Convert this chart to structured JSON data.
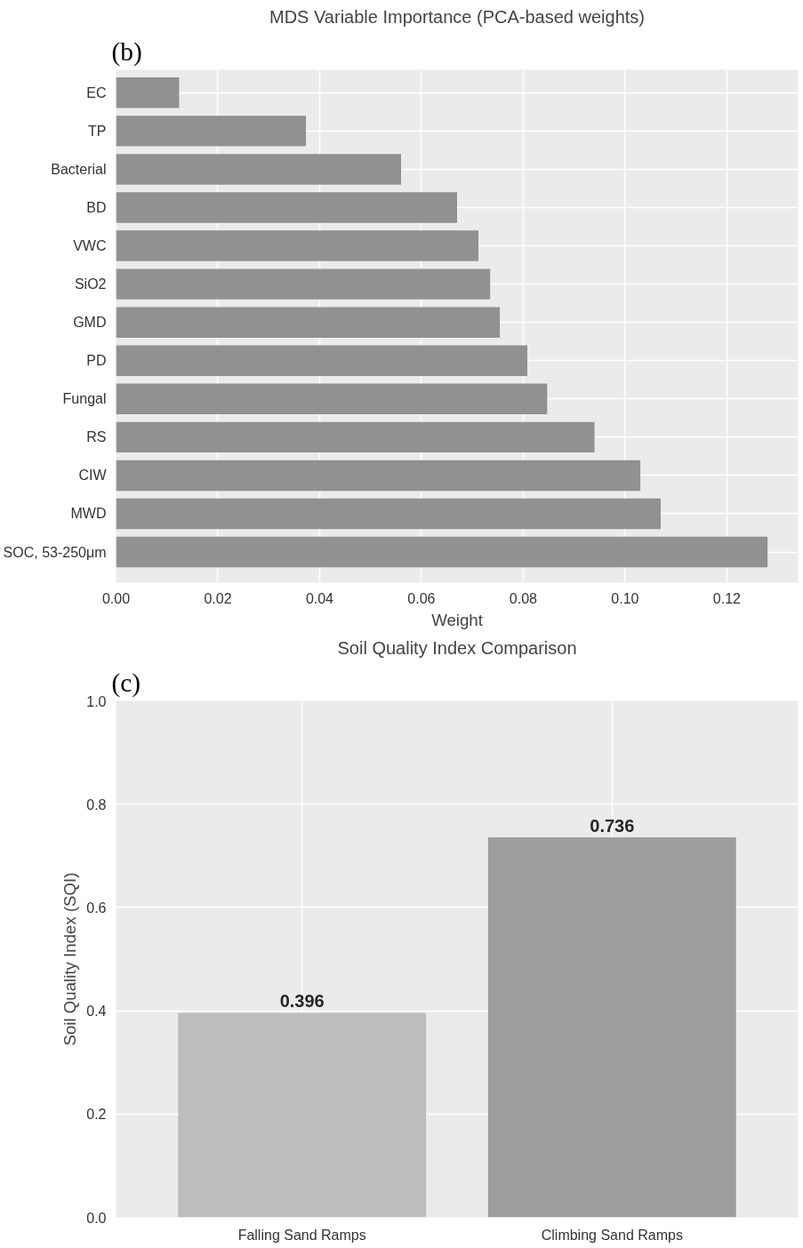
{
  "chart_data": [
    {
      "type": "bar",
      "orientation": "horizontal",
      "title": "MDS Variable Importance (PCA-based weights)",
      "xlabel": "Weight",
      "annotations": [
        "(b)"
      ],
      "categories": [
        "EC",
        "TP",
        "Bacterial",
        "BD",
        "VWC",
        "SiO2",
        "GMD",
        "PD",
        "Fungal",
        "RS",
        "CIW",
        "MWD",
        "SOC, 53-250μm"
      ],
      "values": [
        0.0124,
        0.0373,
        0.056,
        0.067,
        0.0712,
        0.0735,
        0.0754,
        0.0808,
        0.0847,
        0.094,
        0.103,
        0.107,
        0.128
      ],
      "color": "#919191",
      "xlim": [
        0,
        0.134
      ],
      "xticks": [
        {
          "value": 0,
          "label": "0.00"
        },
        {
          "value": 0.02,
          "label": "0.02"
        },
        {
          "value": 0.04,
          "label": "0.04"
        },
        {
          "value": 0.06,
          "label": "0.06"
        },
        {
          "value": 0.08,
          "label": "0.08"
        },
        {
          "value": 0.1,
          "label": "0.10"
        },
        {
          "value": 0.12,
          "label": "0.12"
        }
      ],
      "grid": true
    },
    {
      "type": "bar",
      "title": "Soil Quality Index Comparison",
      "ylabel": "Soil Quality Index (SQI)",
      "annotations": [
        "(c)"
      ],
      "categories": [
        "Falling Sand Ramps",
        "Climbing Sand Ramps"
      ],
      "values": [
        0.396,
        0.736
      ],
      "colors": [
        "#bdbdbd",
        "#9e9e9e"
      ],
      "ylim": [
        0,
        1
      ],
      "yticks": [
        {
          "value": 0,
          "label": "0.0"
        },
        {
          "value": 0.2,
          "label": "0.2"
        },
        {
          "value": 0.4,
          "label": "0.4"
        },
        {
          "value": 0.6,
          "label": "0.6"
        },
        {
          "value": 0.8,
          "label": "0.8"
        },
        {
          "value": 1,
          "label": "1.0"
        }
      ],
      "data_labels": true,
      "grid": true
    }
  ]
}
